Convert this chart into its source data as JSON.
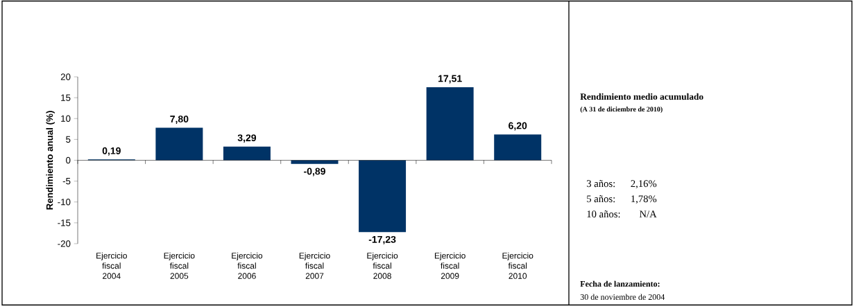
{
  "chart_data": [
    {
      "type": "bar",
      "ylabel": "Rendimiento anual (%)",
      "categories": [
        "Ejercicio fiscal 2004",
        "Ejercicio fiscal 2005",
        "Ejercicio fiscal 2006",
        "Ejercicio fiscal 2007",
        "Ejercicio fiscal 2008",
        "Ejercicio fiscal 2009",
        "Ejercicio fiscal 2010"
      ],
      "values": [
        0.19,
        7.8,
        3.29,
        -0.89,
        -17.23,
        17.51,
        6.2
      ],
      "value_labels": [
        "0,19",
        "7,80",
        "3,29",
        "-0,89",
        "-17,23",
        "17,51",
        "6,20"
      ],
      "color": "#003366",
      "ylim": [
        -20,
        20
      ],
      "yticks": [
        -20,
        -15,
        -10,
        -5,
        0,
        5,
        10,
        15,
        20
      ]
    },
    {
      "type": "other",
      "title": "Rendimiento medio acumulado",
      "subtitle": "(A 31 de diciembre de 2010)",
      "annotations": [
        "3 años:",
        "2,16%",
        "5 años:",
        "1,78%",
        "10 años:",
        "N/A",
        "Fecha de lanzamiento:",
        "30 de noviembre de 2004"
      ]
    }
  ]
}
